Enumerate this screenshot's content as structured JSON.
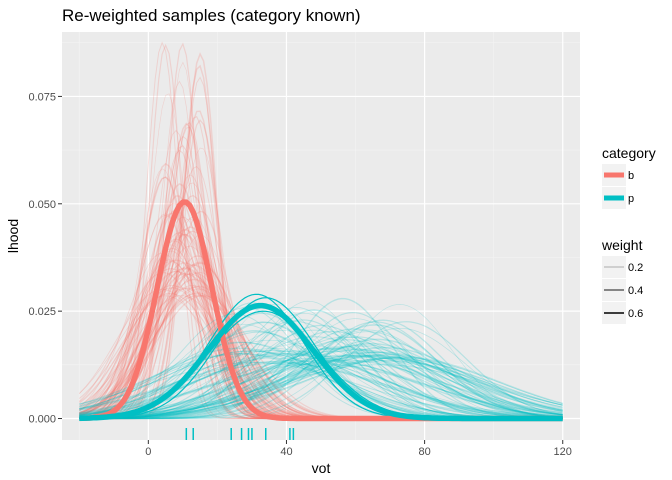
{
  "chart_data": {
    "type": "line",
    "title": "Re-weighted samples (category known)",
    "xlabel": "vot",
    "ylabel": "lhood",
    "xlim": [
      -25,
      125
    ],
    "ylim": [
      -0.005,
      0.09
    ],
    "x_ticks": [
      0,
      40,
      80,
      120
    ],
    "x_tick_labels": [
      "0",
      "40",
      "80",
      "120"
    ],
    "y_ticks": [
      0.0,
      0.025,
      0.05,
      0.075
    ],
    "y_tick_labels": [
      "0.000",
      "0.025",
      "0.050",
      "0.075"
    ],
    "grid": true,
    "legend_position": "right",
    "colors": {
      "b": "#F8766D",
      "p": "#00BFC4",
      "panel": "#EBEBEB",
      "grid_major": "#FFFFFF",
      "grid_minor": "#F4F4F4"
    },
    "curve_domain": [
      -20,
      120
    ],
    "summary_series": [
      {
        "name": "b",
        "mean": 10.5,
        "sd": 7.9,
        "peak": 0.0505
      },
      {
        "name": "p",
        "mean": 32.5,
        "sd": 15.2,
        "peak": 0.0263
      }
    ],
    "sample_series": {
      "b": {
        "mean_range": [
          4,
          16
        ],
        "sd_range": [
          4.5,
          14
        ],
        "count": 90,
        "max_peak": 0.088
      },
      "p": {
        "mean_range": [
          25,
          75
        ],
        "sd_range": [
          14,
          32
        ],
        "count": 90,
        "max_peak": 0.0285
      }
    },
    "rug": [
      {
        "category": "p",
        "vot": 11
      },
      {
        "category": "p",
        "vot": 13
      },
      {
        "category": "p",
        "vot": 24
      },
      {
        "category": "p",
        "vot": 27
      },
      {
        "category": "p",
        "vot": 29
      },
      {
        "category": "p",
        "vot": 30
      },
      {
        "category": "p",
        "vot": 34
      },
      {
        "category": "p",
        "vot": 41
      },
      {
        "category": "p",
        "vot": 42
      }
    ],
    "legend": {
      "category": {
        "title": "category",
        "entries": [
          "b",
          "p"
        ]
      },
      "weight": {
        "title": "weight",
        "entries": [
          "0.2",
          "0.4",
          "0.6"
        ]
      }
    }
  }
}
